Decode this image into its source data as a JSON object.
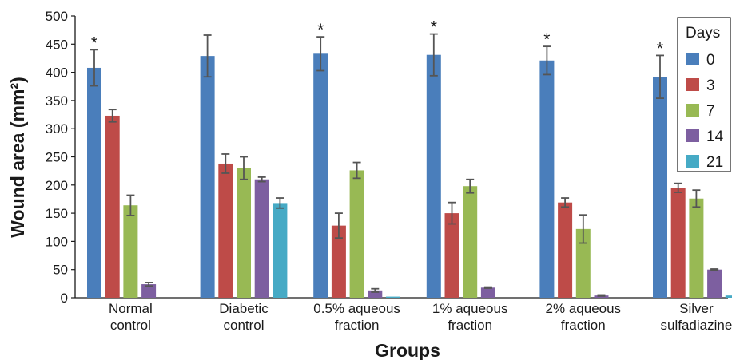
{
  "chart_data": {
    "type": "bar",
    "xlabel": "Groups",
    "ylabel": "Wound area (mm²)",
    "ylim": [
      0,
      500
    ],
    "yticks": [
      0,
      50,
      100,
      150,
      200,
      250,
      300,
      350,
      400,
      450,
      500
    ],
    "grid": false,
    "legend": {
      "title": "Days",
      "placement": "top-right"
    },
    "categories": [
      [
        "Normal",
        "control"
      ],
      [
        "Diabetic",
        "control"
      ],
      [
        "0.5% aqueous",
        "fraction"
      ],
      [
        "1% aqueous",
        "fraction"
      ],
      [
        "2% aqueous",
        "fraction"
      ],
      [
        "Silver",
        "sulfadiazine"
      ]
    ],
    "series": [
      {
        "name": "0",
        "color": "#4a7ebb",
        "values": [
          408,
          429,
          433,
          431,
          421,
          392
        ],
        "errors": [
          32,
          37,
          30,
          37,
          25,
          38
        ]
      },
      {
        "name": "3",
        "color": "#be4b48",
        "values": [
          323,
          238,
          128,
          150,
          169,
          195
        ],
        "errors": [
          11,
          17,
          22,
          19,
          8,
          8
        ]
      },
      {
        "name": "7",
        "color": "#98b954",
        "values": [
          164,
          230,
          226,
          198,
          122,
          176
        ],
        "errors": [
          18,
          20,
          14,
          12,
          25,
          15
        ]
      },
      {
        "name": "14",
        "color": "#7d5fa0",
        "values": [
          24,
          210,
          13,
          18,
          4,
          50
        ],
        "errors": [
          3,
          4,
          3,
          1,
          1,
          1
        ]
      },
      {
        "name": "21",
        "color": "#46aac5",
        "values": [
          null,
          168,
          2,
          null,
          null,
          4
        ],
        "errors": [
          0,
          9,
          0,
          0,
          0,
          0
        ]
      }
    ],
    "annotations": [
      {
        "text": "*",
        "category": 0
      },
      {
        "text": "*",
        "category": 2
      },
      {
        "text": "*",
        "category": 3
      },
      {
        "text": "*",
        "category": 4
      },
      {
        "text": "*",
        "category": 5
      }
    ]
  }
}
